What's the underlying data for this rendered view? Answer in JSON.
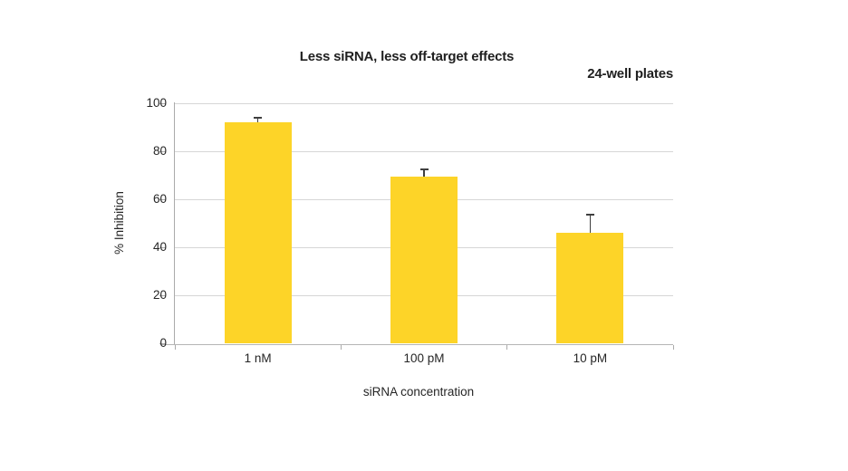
{
  "page": {
    "background": "#ffffff"
  },
  "chart_data": {
    "type": "bar",
    "title": "Less siRNA, less off-target effects",
    "annotation": "24-well plates",
    "xlabel": "siRNA concentration",
    "ylabel": "% Inhibition",
    "categories": [
      "1 nM",
      "100 pM",
      "10 pM"
    ],
    "values": [
      92,
      69.5,
      46
    ],
    "errors_plus": [
      2,
      3,
      7.5
    ],
    "yticks": [
      0,
      20,
      40,
      60,
      80,
      100
    ],
    "ylim": [
      0,
      100
    ],
    "grid": "horizontal",
    "legend": "none",
    "bar_color": "#fdd428",
    "gridline_color": "#d6d6d6",
    "axis_color": "#ababab",
    "error_bar_color": "#3f3f3f",
    "text_color": "#262626"
  }
}
